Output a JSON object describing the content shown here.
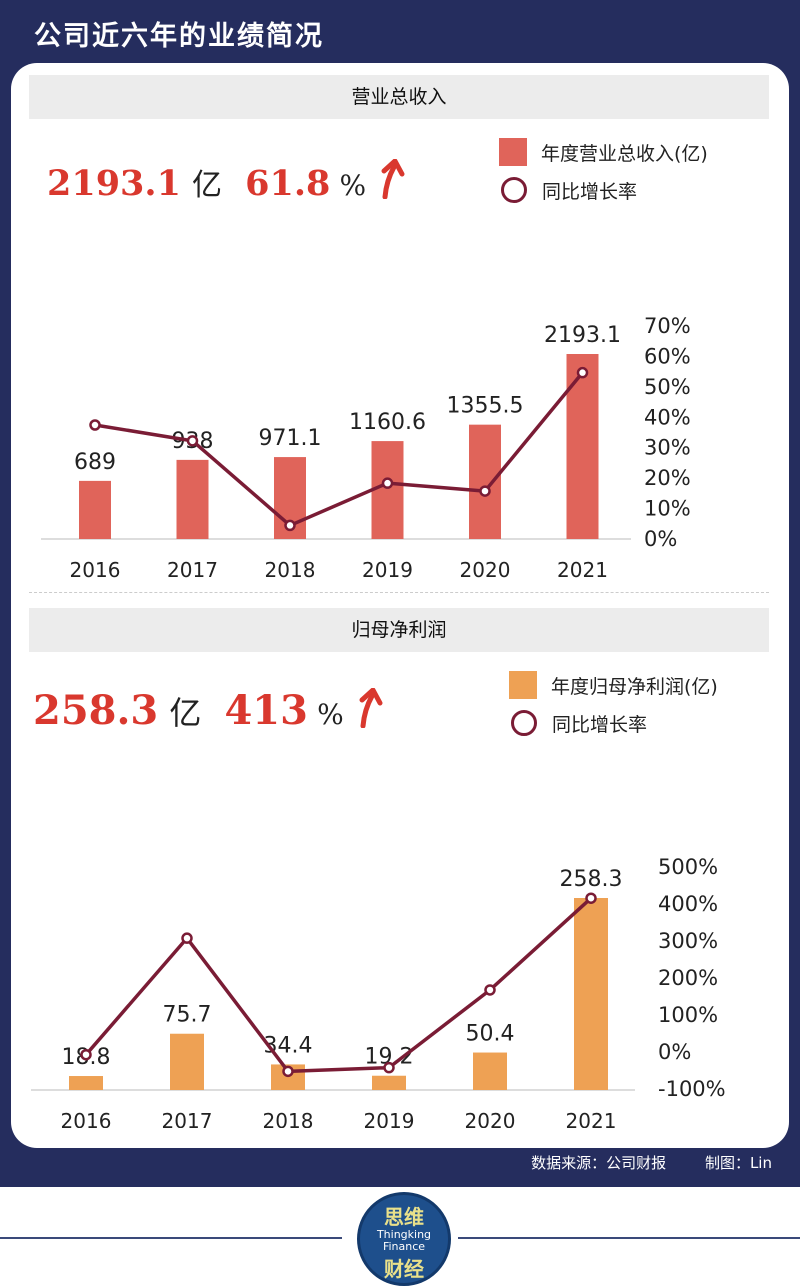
{
  "title": "公司近六年的业绩简况",
  "revenue": {
    "section_title": "营业总收入",
    "kpi_value": "2193.1",
    "kpi_unit": "亿",
    "kpi_pct": "61.8",
    "kpi_pct_unit": "%",
    "legend_bar": "年度营业总收入(亿)",
    "legend_line": "同比增长率",
    "bar_color": "#e0645a"
  },
  "profit": {
    "section_title": "归母净利润",
    "kpi_value": "258.3",
    "kpi_unit": "亿",
    "kpi_pct": "413",
    "kpi_pct_unit": "%",
    "legend_bar": "年度归母净利润(亿)",
    "legend_line": "同比增长率",
    "bar_color": "#eea154"
  },
  "footer": {
    "source": "数据来源：公司财报",
    "author": "制图：Lin"
  },
  "logo": {
    "cn_top": "思维",
    "en_1": "Thingking",
    "en_2": "Finance",
    "cn_bottom": "财经"
  },
  "colors": {
    "frame": "#252d5e",
    "kpi_red": "#d9382e",
    "line": "#7a1c35"
  },
  "chart_data": [
    {
      "type": "bar",
      "categories": [
        "2016",
        "2017",
        "2018",
        "2019",
        "2020",
        "2021"
      ],
      "values": [
        689,
        938,
        971.1,
        1160.6,
        1355.5,
        2193.1
      ],
      "value_labels": [
        "689",
        "938",
        "971.1",
        "1160.6",
        "1355.5",
        "2193.1"
      ],
      "series_name": "年度营业总收入(亿)",
      "line_series": {
        "name": "同比增长率",
        "values": [
          42,
          36,
          4,
          20,
          17,
          61.8
        ]
      },
      "y2_ticks": [
        "70%",
        "60%",
        "50%",
        "40%",
        "30%",
        "20%",
        "10%",
        "0%"
      ],
      "y2lim": [
        0,
        70
      ],
      "legend": "top-right"
    },
    {
      "type": "bar",
      "categories": [
        "2016",
        "2017",
        "2018",
        "2019",
        "2020",
        "2021"
      ],
      "values": [
        18.8,
        75.7,
        34.4,
        19.2,
        50.4,
        258.3
      ],
      "value_labels": [
        "18.8",
        "75.7",
        "34.4",
        "19.2",
        "50.4",
        "258.3"
      ],
      "series_name": "年度归母净利润(亿)",
      "line_series": {
        "name": "同比增长率",
        "values": [
          -10,
          305,
          -55,
          -45,
          165,
          413
        ]
      },
      "y2_ticks": [
        "500%",
        "400%",
        "300%",
        "200%",
        "100%",
        "0%",
        "-100%"
      ],
      "y2lim": [
        -100,
        500
      ],
      "legend": "top-right"
    }
  ]
}
